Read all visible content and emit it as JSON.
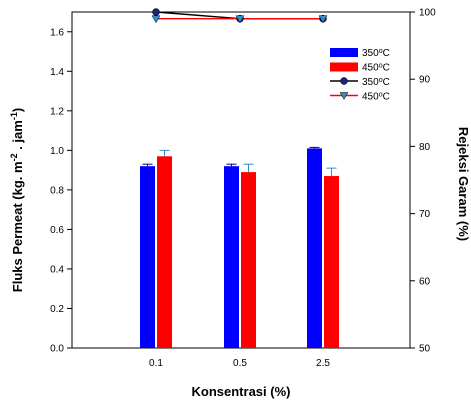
{
  "chart_data": {
    "type": "bar",
    "categories": [
      "0.1",
      "0.5",
      "2.5"
    ],
    "xlabel": "Konsentrasi (%)",
    "ylabel": {
      "main": "Fluks Permeat (kg. m",
      "sup1": "-2",
      "mid": " . jam",
      "sup2": "-1",
      "end": ")"
    },
    "y2label": "Rejeksi Garam (%)",
    "ylim": [
      0,
      1.7
    ],
    "yticks": [
      "0.0",
      "0.2",
      "0.4",
      "0.6",
      "0.8",
      "1.0",
      "1.2",
      "1.4",
      "1.6"
    ],
    "y2lim": [
      50,
      100
    ],
    "y2ticks": [
      "50",
      "60",
      "70",
      "80",
      "90",
      "100"
    ],
    "grid": false,
    "legend_position": "top-right",
    "bar_series": [
      {
        "name": "350",
        "unit": "C",
        "color": "#0000ff",
        "values": [
          0.92,
          0.92,
          1.01
        ],
        "errors": [
          0.01,
          0.01,
          0.005
        ]
      },
      {
        "name": "450",
        "unit": "C",
        "color": "#ff0000",
        "values": [
          0.97,
          0.89,
          0.87
        ],
        "errors": [
          0.03,
          0.04,
          0.04
        ]
      }
    ],
    "line_series": [
      {
        "name": "350",
        "unit": "C",
        "color": "#000000",
        "marker": "circle",
        "marker_color": "#1a237e",
        "values": [
          100.0,
          99.0,
          99.0
        ]
      },
      {
        "name": "450",
        "unit": "C",
        "color": "#ff0000",
        "marker": "triangle-down",
        "marker_color": "#2f8fd0",
        "values": [
          99.0,
          99.0,
          99.0
        ]
      }
    ],
    "degree_symbol": "o"
  }
}
